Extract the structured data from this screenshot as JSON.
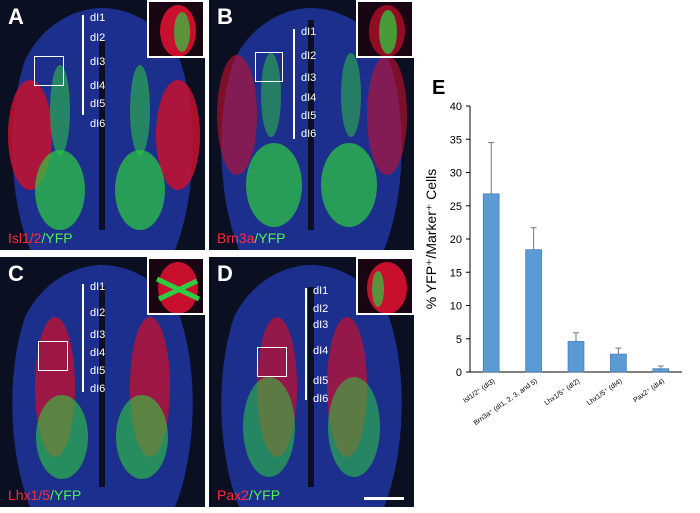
{
  "panels": [
    {
      "letter": "A",
      "marker": "Isl1/2",
      "reporter": "YFP",
      "zones": [
        "dI1",
        "dI2",
        "dI3",
        "dI4",
        "dI5",
        "dI6"
      ]
    },
    {
      "letter": "B",
      "marker": "Brn3a",
      "reporter": "YFP",
      "zones": [
        "dI1",
        "dI2",
        "dI3",
        "dI4",
        "dI5",
        "dI6"
      ]
    },
    {
      "letter": "C",
      "marker": "Lhx1/5",
      "reporter": "YFP",
      "zones": [
        "dI1",
        "dI2",
        "dI3",
        "dI4",
        "dI5",
        "dI6"
      ]
    },
    {
      "letter": "D",
      "marker": "Pax2",
      "reporter": "YFP",
      "zones": [
        "dI1",
        "dI2",
        "dI3",
        "dI4",
        "dI5",
        "dI6"
      ]
    }
  ],
  "colors": {
    "marker_red": "#ff2d3a",
    "reporter_green": "#4ef04e",
    "tissue_blue": "#1d2f8c",
    "bar_blue": "#5b9bd5"
  },
  "chart_data": {
    "panel_letter": "E",
    "type": "bar",
    "ylabel": "% YFP⁺/Marker⁺ Cells",
    "ylim": [
      0,
      40
    ],
    "yticks": [
      0,
      5,
      10,
      15,
      20,
      25,
      30,
      35,
      40
    ],
    "categories": [
      "Isl1/2⁺ (dI3)",
      "Brn3a⁺ (dI1, 2, 3, and 5)",
      "Lhx1/5⁺ (dI2)",
      "Lhx1/5⁺ (dI4)",
      "Pax2⁺ (dI4)"
    ],
    "values": [
      26.8,
      18.4,
      4.6,
      2.7,
      0.5
    ],
    "errors": [
      7.7,
      3.3,
      1.3,
      0.9,
      0.4
    ],
    "grid": false
  }
}
